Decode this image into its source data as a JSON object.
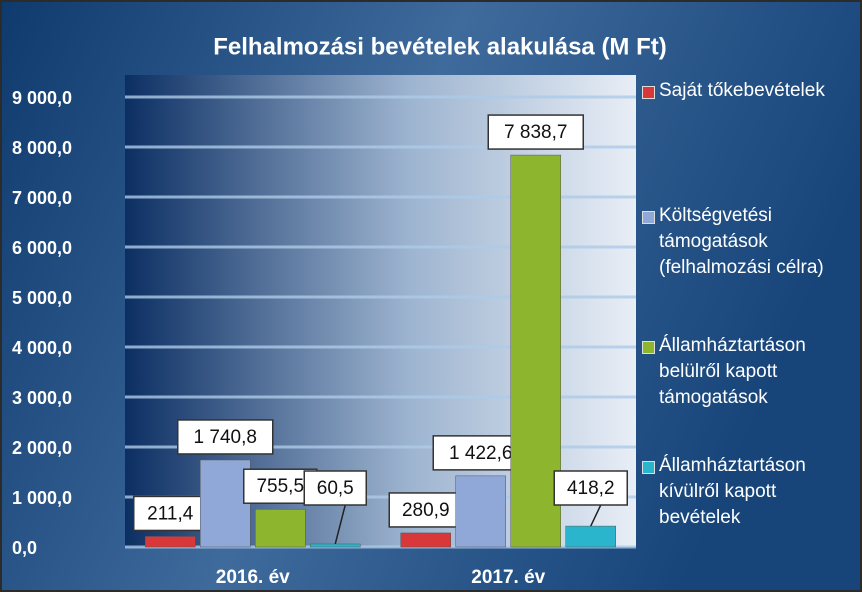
{
  "chart_data": {
    "type": "bar",
    "title": "Felhalmozási bevételek alakulása (M Ft)",
    "categories": [
      "2016. év",
      "2017. év"
    ],
    "series": [
      {
        "name": "Saját tőkebevételek",
        "color": "#d9383a",
        "values": [
          211.4,
          280.9
        ],
        "value_labels": [
          "211,4",
          "280,9"
        ]
      },
      {
        "name": "Költségvetési támogatások (felhalmozási célra)",
        "color": "#8fa8d8",
        "values": [
          1740.8,
          1422.6
        ],
        "value_labels": [
          "1 740,8",
          "1 422,6"
        ]
      },
      {
        "name": "Államháztartáson belülről kapott támogatások",
        "color": "#8db52e",
        "values": [
          755.5,
          7838.7
        ],
        "value_labels": [
          "755,5",
          "7 838,7"
        ]
      },
      {
        "name": "Államháztartáson kívülről kapott bevételek",
        "color": "#2bb5cc",
        "values": [
          60.5,
          418.2
        ],
        "value_labels": [
          "60,5",
          "418,2"
        ]
      }
    ],
    "ylim": [
      0,
      9000
    ],
    "yticks": [
      {
        "value": 0,
        "label": "0,0"
      },
      {
        "value": 1000,
        "label": "1 000,0"
      },
      {
        "value": 2000,
        "label": "2 000,0"
      },
      {
        "value": 3000,
        "label": "3 000,0"
      },
      {
        "value": 4000,
        "label": "4 000,0"
      },
      {
        "value": 5000,
        "label": "5 000,0"
      },
      {
        "value": 6000,
        "label": "6 000,0"
      },
      {
        "value": 7000,
        "label": "7 000,0"
      },
      {
        "value": 8000,
        "label": "8 000,0"
      },
      {
        "value": 9000,
        "label": "9 000,0"
      }
    ],
    "grid": true
  }
}
